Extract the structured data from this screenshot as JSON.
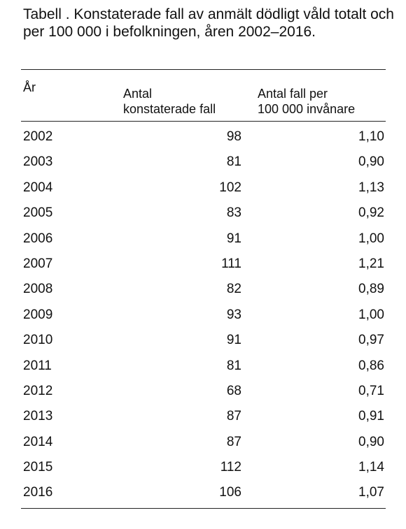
{
  "caption": "Tabell . Konstaterade fall av anmält dödligt våld totalt och per 100 000 i befolkningen, åren 2002–2016.",
  "table": {
    "headers": {
      "year": "År",
      "count_line1": "Antal",
      "count_line2": "konstaterade fall",
      "rate_line1": "Antal fall per",
      "rate_line2": "100 000 invånare"
    },
    "rows": [
      {
        "year": "2002",
        "count": "98",
        "rate": "1,10"
      },
      {
        "year": "2003",
        "count": "81",
        "rate": "0,90"
      },
      {
        "year": "2004",
        "count": "102",
        "rate": "1,13"
      },
      {
        "year": "2005",
        "count": "83",
        "rate": "0,92"
      },
      {
        "year": "2006",
        "count": "91",
        "rate": "1,00"
      },
      {
        "year": "2007",
        "count": "111",
        "rate": "1,21"
      },
      {
        "year": "2008",
        "count": "82",
        "rate": "0,89"
      },
      {
        "year": "2009",
        "count": "93",
        "rate": "1,00"
      },
      {
        "year": "2010",
        "count": "91",
        "rate": "0,97"
      },
      {
        "year": "2011",
        "count": "81",
        "rate": "0,86"
      },
      {
        "year": "2012",
        "count": "68",
        "rate": "0,71"
      },
      {
        "year": "2013",
        "count": "87",
        "rate": "0,91"
      },
      {
        "year": "2014",
        "count": "87",
        "rate": "0,90"
      },
      {
        "year": "2015",
        "count": "112",
        "rate": "1,14"
      },
      {
        "year": "2016",
        "count": "106",
        "rate": "1,07"
      }
    ]
  }
}
